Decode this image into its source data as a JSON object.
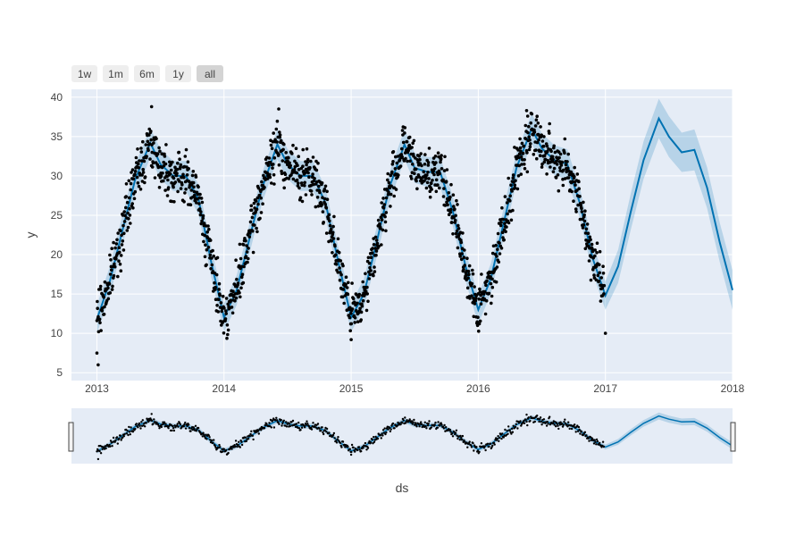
{
  "range_selector": {
    "buttons": [
      "1w",
      "1m",
      "6m",
      "1y",
      "all"
    ],
    "active": "all"
  },
  "colors": {
    "plot_bg": "#e5ecf6",
    "grid": "#ffffff",
    "trend_line": "#0072b2",
    "band": "#0072b2",
    "points": "#000000"
  },
  "chart_data": {
    "type": "line",
    "title": "",
    "xlabel": "ds",
    "ylabel": "y",
    "xlim": [
      2012.8,
      2018.0
    ],
    "ylim": [
      4,
      41
    ],
    "x_ticks": [
      "2013",
      "2014",
      "2015",
      "2016",
      "2017",
      "2018"
    ],
    "y_ticks": [
      5,
      10,
      15,
      20,
      25,
      30,
      35,
      40
    ],
    "grid": true,
    "legend": "none",
    "series": [
      {
        "kind": "forecast_line",
        "x": [
          2013.0,
          2013.1,
          2013.2,
          2013.3,
          2013.42,
          2013.5,
          2013.6,
          2013.7,
          2013.8,
          2013.9,
          2014.0,
          2014.1,
          2014.2,
          2014.3,
          2014.42,
          2014.5,
          2014.6,
          2014.7,
          2014.8,
          2014.9,
          2015.0,
          2015.1,
          2015.2,
          2015.3,
          2015.42,
          2015.5,
          2015.6,
          2015.7,
          2015.8,
          2015.9,
          2016.0,
          2016.1,
          2016.2,
          2016.3,
          2016.42,
          2016.5,
          2016.6,
          2016.7,
          2016.8,
          2016.9,
          2017.0,
          2017.1,
          2017.2,
          2017.3,
          2017.42,
          2017.5,
          2017.6,
          2017.7,
          2017.8,
          2017.9,
          2018.0
        ],
        "y": [
          11.8,
          16.5,
          23.0,
          29.5,
          34.2,
          31.5,
          30.0,
          30.0,
          27.0,
          19.0,
          12.0,
          15.5,
          22.0,
          28.5,
          34.0,
          31.5,
          30.0,
          30.0,
          26.5,
          19.0,
          12.0,
          15.0,
          21.5,
          28.5,
          34.0,
          31.0,
          30.5,
          30.5,
          25.5,
          18.5,
          13.0,
          17.0,
          24.0,
          31.0,
          36.0,
          33.5,
          32.0,
          31.5,
          26.5,
          19.5,
          14.8,
          18.5,
          25.5,
          32.0,
          37.3,
          35.0,
          33.0,
          33.3,
          28.5,
          21.5,
          15.5
        ]
      },
      {
        "kind": "uncertainty_band",
        "x": [
          2013.0,
          2013.1,
          2013.2,
          2013.3,
          2013.42,
          2013.5,
          2013.6,
          2013.7,
          2013.8,
          2013.9,
          2014.0,
          2014.1,
          2014.2,
          2014.3,
          2014.42,
          2014.5,
          2014.6,
          2014.7,
          2014.8,
          2014.9,
          2015.0,
          2015.1,
          2015.2,
          2015.3,
          2015.42,
          2015.5,
          2015.6,
          2015.7,
          2015.8,
          2015.9,
          2016.0,
          2016.1,
          2016.2,
          2016.3,
          2016.42,
          2016.5,
          2016.6,
          2016.7,
          2016.8,
          2016.9,
          2017.0,
          2017.1,
          2017.2,
          2017.3,
          2017.42,
          2017.5,
          2017.6,
          2017.7,
          2017.8,
          2017.9,
          2018.0
        ],
        "lower": [
          10.0,
          14.6,
          21.1,
          27.6,
          32.3,
          29.6,
          28.1,
          28.1,
          25.1,
          17.1,
          10.2,
          13.6,
          20.1,
          26.6,
          32.1,
          29.6,
          28.1,
          28.1,
          24.6,
          17.1,
          10.2,
          13.1,
          19.6,
          26.6,
          32.1,
          29.1,
          28.6,
          28.6,
          23.6,
          16.6,
          11.2,
          15.1,
          22.1,
          29.1,
          34.1,
          31.6,
          30.1,
          29.6,
          24.6,
          17.6,
          13.0,
          16.4,
          23.2,
          29.6,
          34.8,
          32.4,
          30.5,
          30.7,
          25.9,
          19.0,
          13.0
        ],
        "upper": [
          13.6,
          18.4,
          24.9,
          31.4,
          36.1,
          33.4,
          31.9,
          31.9,
          28.9,
          20.9,
          13.8,
          17.4,
          23.9,
          30.4,
          35.9,
          33.4,
          31.9,
          31.9,
          28.4,
          20.9,
          13.8,
          16.9,
          23.4,
          30.4,
          35.9,
          32.9,
          32.4,
          32.4,
          27.4,
          20.4,
          14.8,
          18.9,
          25.9,
          32.9,
          37.9,
          35.4,
          33.9,
          33.4,
          28.4,
          21.4,
          16.6,
          20.6,
          27.8,
          34.4,
          39.8,
          37.6,
          35.5,
          35.9,
          31.1,
          24.0,
          18.0
        ]
      },
      {
        "kind": "observed_points",
        "x_range": [
          2013.0,
          2016.99
        ],
        "approx_count": 1460,
        "spread": 2.2,
        "outliers": [
          {
            "x": 2013.01,
            "y": 6.0
          },
          {
            "x": 2013.0,
            "y": 7.5
          },
          {
            "x": 2015.0,
            "y": 9.2
          },
          {
            "x": 2017.0,
            "y": 10.0
          },
          {
            "x": 2013.43,
            "y": 38.8
          },
          {
            "x": 2014.43,
            "y": 38.5
          },
          {
            "x": 2016.38,
            "y": 38.3
          }
        ]
      }
    ]
  }
}
